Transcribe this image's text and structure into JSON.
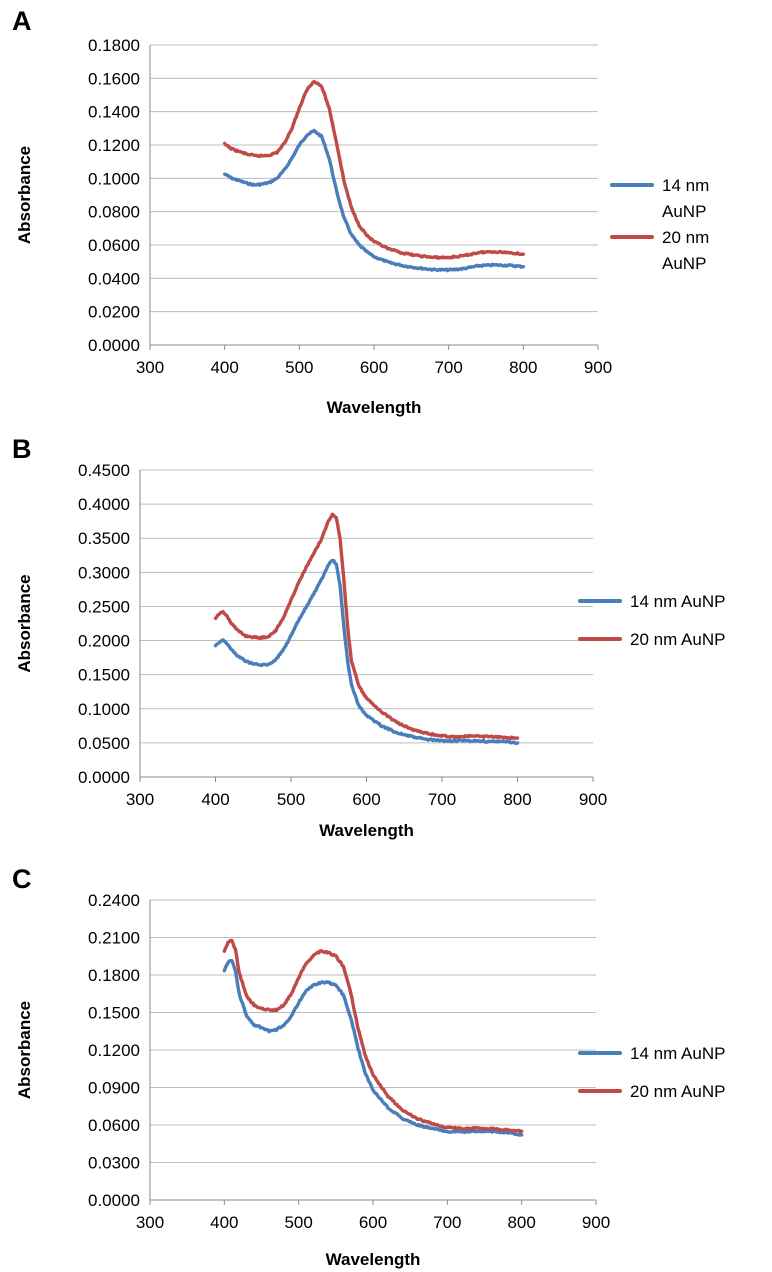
{
  "colors": {
    "series_14nm": "#4a7ebb",
    "series_20nm": "#be4b48",
    "grid": "#bdbdbd"
  },
  "chart_data": [
    {
      "panel": "A",
      "type": "line",
      "xlabel": "Wavelength",
      "ylabel": "Absorbance",
      "xlim": [
        300,
        900
      ],
      "ylim": [
        0,
        0.18
      ],
      "xticks": [
        300,
        400,
        500,
        600,
        700,
        800,
        900
      ],
      "yticks": [
        0,
        0.02,
        0.04,
        0.06,
        0.08,
        0.1,
        0.12,
        0.14,
        0.16,
        0.18
      ],
      "y_tick_labels": [
        "0.0000",
        "0.0200",
        "0.0400",
        "0.0600",
        "0.0800",
        "0.1000",
        "0.1200",
        "0.1400",
        "0.1600",
        "0.1800"
      ],
      "legend_position": "right",
      "legend_wrapped": true,
      "grid": "horizontal",
      "series": [
        {
          "name": "14 nm AuNP",
          "legend_lines": [
            "14 nm",
            "AuNP"
          ],
          "color": "#4a7ebb",
          "points": [
            [
              400,
              0.1025
            ],
            [
              410,
              0.1
            ],
            [
              420,
              0.0985
            ],
            [
              430,
              0.097
            ],
            [
              440,
              0.096
            ],
            [
              450,
              0.0965
            ],
            [
              460,
              0.0975
            ],
            [
              470,
              0.1
            ],
            [
              480,
              0.105
            ],
            [
              490,
              0.112
            ],
            [
              500,
              0.12
            ],
            [
              510,
              0.126
            ],
            [
              520,
              0.1285
            ],
            [
              530,
              0.125
            ],
            [
              540,
              0.112
            ],
            [
              550,
              0.092
            ],
            [
              560,
              0.076
            ],
            [
              570,
              0.066
            ],
            [
              580,
              0.06
            ],
            [
              590,
              0.056
            ],
            [
              600,
              0.053
            ],
            [
              620,
              0.0495
            ],
            [
              640,
              0.0475
            ],
            [
              660,
              0.0462
            ],
            [
              680,
              0.0452
            ],
            [
              700,
              0.045
            ],
            [
              720,
              0.0458
            ],
            [
              740,
              0.0475
            ],
            [
              760,
              0.048
            ],
            [
              780,
              0.0478
            ],
            [
              800,
              0.047
            ]
          ]
        },
        {
          "name": "20 nm AuNP",
          "legend_lines": [
            "20 nm",
            "AuNP"
          ],
          "color": "#be4b48",
          "points": [
            [
              400,
              0.1205
            ],
            [
              410,
              0.1175
            ],
            [
              420,
              0.116
            ],
            [
              430,
              0.1145
            ],
            [
              440,
              0.1135
            ],
            [
              450,
              0.1135
            ],
            [
              460,
              0.114
            ],
            [
              470,
              0.1155
            ],
            [
              480,
              0.121
            ],
            [
              490,
              0.13
            ],
            [
              500,
              0.142
            ],
            [
              510,
              0.153
            ],
            [
              520,
              0.1585
            ],
            [
              530,
              0.155
            ],
            [
              540,
              0.142
            ],
            [
              550,
              0.121
            ],
            [
              560,
              0.098
            ],
            [
              570,
              0.082
            ],
            [
              580,
              0.072
            ],
            [
              590,
              0.066
            ],
            [
              600,
              0.062
            ],
            [
              620,
              0.0575
            ],
            [
              640,
              0.055
            ],
            [
              660,
              0.0535
            ],
            [
              680,
              0.0525
            ],
            [
              700,
              0.0525
            ],
            [
              720,
              0.0535
            ],
            [
              740,
              0.0555
            ],
            [
              760,
              0.056
            ],
            [
              780,
              0.0555
            ],
            [
              800,
              0.0545
            ]
          ]
        }
      ]
    },
    {
      "panel": "B",
      "type": "line",
      "xlabel": "Wavelength",
      "ylabel": "Absorbance",
      "xlim": [
        300,
        900
      ],
      "ylim": [
        0,
        0.45
      ],
      "xticks": [
        300,
        400,
        500,
        600,
        700,
        800,
        900
      ],
      "yticks": [
        0,
        0.05,
        0.1,
        0.15,
        0.2,
        0.25,
        0.3,
        0.35,
        0.4,
        0.45
      ],
      "y_tick_labels": [
        "0.0000",
        "0.0500",
        "0.1000",
        "0.1500",
        "0.2000",
        "0.2500",
        "0.3000",
        "0.3500",
        "0.4000",
        "0.4500"
      ],
      "legend_position": "right",
      "legend_wrapped": false,
      "grid": "horizontal",
      "series": [
        {
          "name": "14 nm AuNP",
          "legend_lines": [
            "14 nm AuNP"
          ],
          "color": "#4a7ebb",
          "points": [
            [
              400,
              0.193
            ],
            [
              405,
              0.198
            ],
            [
              410,
              0.201
            ],
            [
              415,
              0.196
            ],
            [
              420,
              0.188
            ],
            [
              430,
              0.177
            ],
            [
              440,
              0.17
            ],
            [
              450,
              0.166
            ],
            [
              460,
              0.164
            ],
            [
              470,
              0.165
            ],
            [
              480,
              0.172
            ],
            [
              490,
              0.187
            ],
            [
              500,
              0.207
            ],
            [
              510,
              0.229
            ],
            [
              520,
              0.249
            ],
            [
              530,
              0.268
            ],
            [
              540,
              0.288
            ],
            [
              550,
              0.312
            ],
            [
              555,
              0.318
            ],
            [
              560,
              0.312
            ],
            [
              565,
              0.28
            ],
            [
              570,
              0.22
            ],
            [
              575,
              0.17
            ],
            [
              580,
              0.135
            ],
            [
              590,
              0.104
            ],
            [
              600,
              0.09
            ],
            [
              620,
              0.075
            ],
            [
              640,
              0.065
            ],
            [
              660,
              0.059
            ],
            [
              680,
              0.055
            ],
            [
              700,
              0.053
            ],
            [
              720,
              0.053
            ],
            [
              740,
              0.053
            ],
            [
              760,
              0.052
            ],
            [
              780,
              0.052
            ],
            [
              800,
              0.05
            ]
          ]
        },
        {
          "name": "20 nm AuNP",
          "legend_lines": [
            "20 nm AuNP"
          ],
          "color": "#be4b48",
          "points": [
            [
              400,
              0.232
            ],
            [
              405,
              0.239
            ],
            [
              410,
              0.242
            ],
            [
              415,
              0.237
            ],
            [
              420,
              0.227
            ],
            [
              430,
              0.214
            ],
            [
              440,
              0.207
            ],
            [
              450,
              0.205
            ],
            [
              460,
              0.204
            ],
            [
              470,
              0.206
            ],
            [
              480,
              0.215
            ],
            [
              490,
              0.234
            ],
            [
              500,
              0.259
            ],
            [
              510,
              0.285
            ],
            [
              520,
              0.307
            ],
            [
              530,
              0.327
            ],
            [
              540,
              0.348
            ],
            [
              550,
              0.376
            ],
            [
              555,
              0.386
            ],
            [
              560,
              0.38
            ],
            [
              565,
              0.35
            ],
            [
              570,
              0.29
            ],
            [
              575,
              0.22
            ],
            [
              580,
              0.17
            ],
            [
              590,
              0.133
            ],
            [
              600,
              0.116
            ],
            [
              620,
              0.095
            ],
            [
              640,
              0.08
            ],
            [
              660,
              0.07
            ],
            [
              680,
              0.064
            ],
            [
              700,
              0.06
            ],
            [
              720,
              0.059
            ],
            [
              740,
              0.06
            ],
            [
              760,
              0.059
            ],
            [
              780,
              0.058
            ],
            [
              800,
              0.057
            ]
          ]
        }
      ]
    },
    {
      "panel": "C",
      "type": "line",
      "xlabel": "Wavelength",
      "ylabel": "Absorbance",
      "xlim": [
        300,
        900
      ],
      "ylim": [
        0,
        0.24
      ],
      "xticks": [
        300,
        400,
        500,
        600,
        700,
        800,
        900
      ],
      "yticks": [
        0,
        0.03,
        0.06,
        0.09,
        0.12,
        0.15,
        0.18,
        0.21,
        0.24
      ],
      "y_tick_labels": [
        "0.0000",
        "0.0300",
        "0.0600",
        "0.0900",
        "0.1200",
        "0.1500",
        "0.1800",
        "0.2100",
        "0.2400"
      ],
      "legend_position": "right",
      "legend_wrapped": false,
      "grid": "horizontal",
      "series": [
        {
          "name": "14 nm AuNP",
          "legend_lines": [
            "14 nm AuNP"
          ],
          "color": "#4a7ebb",
          "points": [
            [
              400,
              0.184
            ],
            [
              405,
              0.19
            ],
            [
              410,
              0.192
            ],
            [
              415,
              0.183
            ],
            [
              420,
              0.165
            ],
            [
              430,
              0.147
            ],
            [
              440,
              0.14
            ],
            [
              450,
              0.138
            ],
            [
              460,
              0.135
            ],
            [
              470,
              0.136
            ],
            [
              480,
              0.14
            ],
            [
              490,
              0.147
            ],
            [
              500,
              0.158
            ],
            [
              510,
              0.167
            ],
            [
              520,
              0.172
            ],
            [
              530,
              0.174
            ],
            [
              540,
              0.174
            ],
            [
              550,
              0.172
            ],
            [
              560,
              0.164
            ],
            [
              570,
              0.146
            ],
            [
              580,
              0.121
            ],
            [
              590,
              0.101
            ],
            [
              600,
              0.088
            ],
            [
              620,
              0.074
            ],
            [
              640,
              0.065
            ],
            [
              660,
              0.06
            ],
            [
              680,
              0.057
            ],
            [
              700,
              0.055
            ],
            [
              720,
              0.0545
            ],
            [
              740,
              0.055
            ],
            [
              760,
              0.055
            ],
            [
              780,
              0.054
            ],
            [
              800,
              0.052
            ]
          ]
        },
        {
          "name": "20 nm AuNP",
          "legend_lines": [
            "20 nm AuNP"
          ],
          "color": "#be4b48",
          "points": [
            [
              400,
              0.199
            ],
            [
              405,
              0.206
            ],
            [
              410,
              0.208
            ],
            [
              415,
              0.2
            ],
            [
              420,
              0.182
            ],
            [
              430,
              0.163
            ],
            [
              440,
              0.156
            ],
            [
              450,
              0.153
            ],
            [
              460,
              0.152
            ],
            [
              470,
              0.152
            ],
            [
              480,
              0.156
            ],
            [
              490,
              0.165
            ],
            [
              500,
              0.178
            ],
            [
              510,
              0.189
            ],
            [
              520,
              0.196
            ],
            [
              530,
              0.199
            ],
            [
              540,
              0.198
            ],
            [
              550,
              0.195
            ],
            [
              560,
              0.187
            ],
            [
              570,
              0.166
            ],
            [
              580,
              0.137
            ],
            [
              590,
              0.115
            ],
            [
              600,
              0.1
            ],
            [
              620,
              0.083
            ],
            [
              640,
              0.072
            ],
            [
              660,
              0.065
            ],
            [
              680,
              0.061
            ],
            [
              700,
              0.058
            ],
            [
              720,
              0.057
            ],
            [
              740,
              0.0575
            ],
            [
              760,
              0.057
            ],
            [
              780,
              0.056
            ],
            [
              800,
              0.055
            ]
          ]
        }
      ]
    }
  ]
}
